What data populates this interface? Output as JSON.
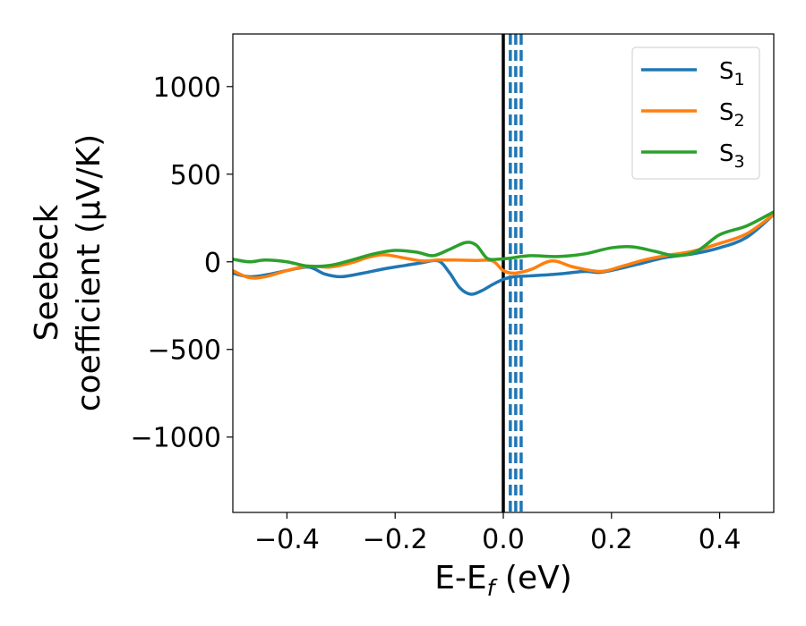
{
  "chart_data": {
    "type": "line",
    "xlabel": "E-E",
    "xlabel_sub": "f",
    "xlabel_unit": " (eV)",
    "ylabel_line1": "Seebeck",
    "ylabel_line2": "coefficient  (μV/K)",
    "xlim": [
      -0.5,
      0.5
    ],
    "ylim": [
      -1430,
      1300
    ],
    "x_ticks": [
      -0.4,
      -0.2,
      0.0,
      0.2,
      0.4
    ],
    "x_tick_labels": [
      "−0.4",
      "−0.2",
      "0.0",
      "0.2",
      "0.4"
    ],
    "y_ticks": [
      1000,
      500,
      0,
      -500,
      -1000
    ],
    "y_tick_labels": [
      "1000",
      "500",
      "0",
      "−500",
      "−1000"
    ],
    "grid": false,
    "legend_position": "top-right",
    "fermi_line_x": 0.0,
    "fermi_line_color": "#000000",
    "dashed_lines": {
      "x": [
        0.013,
        0.023,
        0.033
      ],
      "color": "#1f77b4"
    },
    "series": [
      {
        "name": "S",
        "sub": "1",
        "color": "#1f77b4",
        "x": [
          -0.5,
          -0.47,
          -0.44,
          -0.4,
          -0.36,
          -0.33,
          -0.3,
          -0.26,
          -0.22,
          -0.18,
          -0.15,
          -0.12,
          -0.1,
          -0.08,
          -0.06,
          -0.04,
          -0.02,
          0.0,
          0.02,
          0.05,
          0.1,
          0.15,
          0.18,
          0.22,
          0.26,
          0.3,
          0.35,
          0.4,
          0.45,
          0.5
        ],
        "y": [
          -65,
          -85,
          -75,
          -50,
          -30,
          -70,
          -85,
          -65,
          -40,
          -20,
          -5,
          5,
          -60,
          -150,
          -185,
          -165,
          -130,
          -100,
          -85,
          -80,
          -70,
          -55,
          -60,
          -35,
          -5,
          25,
          45,
          80,
          140,
          270
        ]
      },
      {
        "name": "S",
        "sub": "2",
        "color": "#ff7f0e",
        "x": [
          -0.5,
          -0.47,
          -0.44,
          -0.4,
          -0.36,
          -0.32,
          -0.28,
          -0.25,
          -0.22,
          -0.18,
          -0.15,
          -0.12,
          -0.09,
          -0.05,
          -0.02,
          0.0,
          0.02,
          0.05,
          0.09,
          0.13,
          0.18,
          0.22,
          0.26,
          0.3,
          0.35,
          0.4,
          0.45,
          0.5
        ],
        "y": [
          -50,
          -90,
          -85,
          -50,
          -25,
          -30,
          -5,
          25,
          40,
          20,
          5,
          10,
          10,
          8,
          5,
          -50,
          -65,
          -45,
          5,
          -30,
          -55,
          -25,
          10,
          35,
          60,
          105,
          160,
          270
        ]
      },
      {
        "name": "S",
        "sub": "3",
        "color": "#2ca02c",
        "x": [
          -0.5,
          -0.47,
          -0.44,
          -0.4,
          -0.36,
          -0.32,
          -0.28,
          -0.24,
          -0.2,
          -0.16,
          -0.13,
          -0.1,
          -0.07,
          -0.05,
          -0.03,
          -0.01,
          0.01,
          0.05,
          0.1,
          0.15,
          0.2,
          0.24,
          0.28,
          0.32,
          0.36,
          0.4,
          0.45,
          0.5
        ],
        "y": [
          15,
          0,
          10,
          0,
          -25,
          -20,
          10,
          45,
          65,
          55,
          35,
          70,
          110,
          95,
          20,
          15,
          20,
          35,
          30,
          45,
          80,
          85,
          60,
          35,
          65,
          155,
          205,
          285
        ]
      }
    ]
  }
}
